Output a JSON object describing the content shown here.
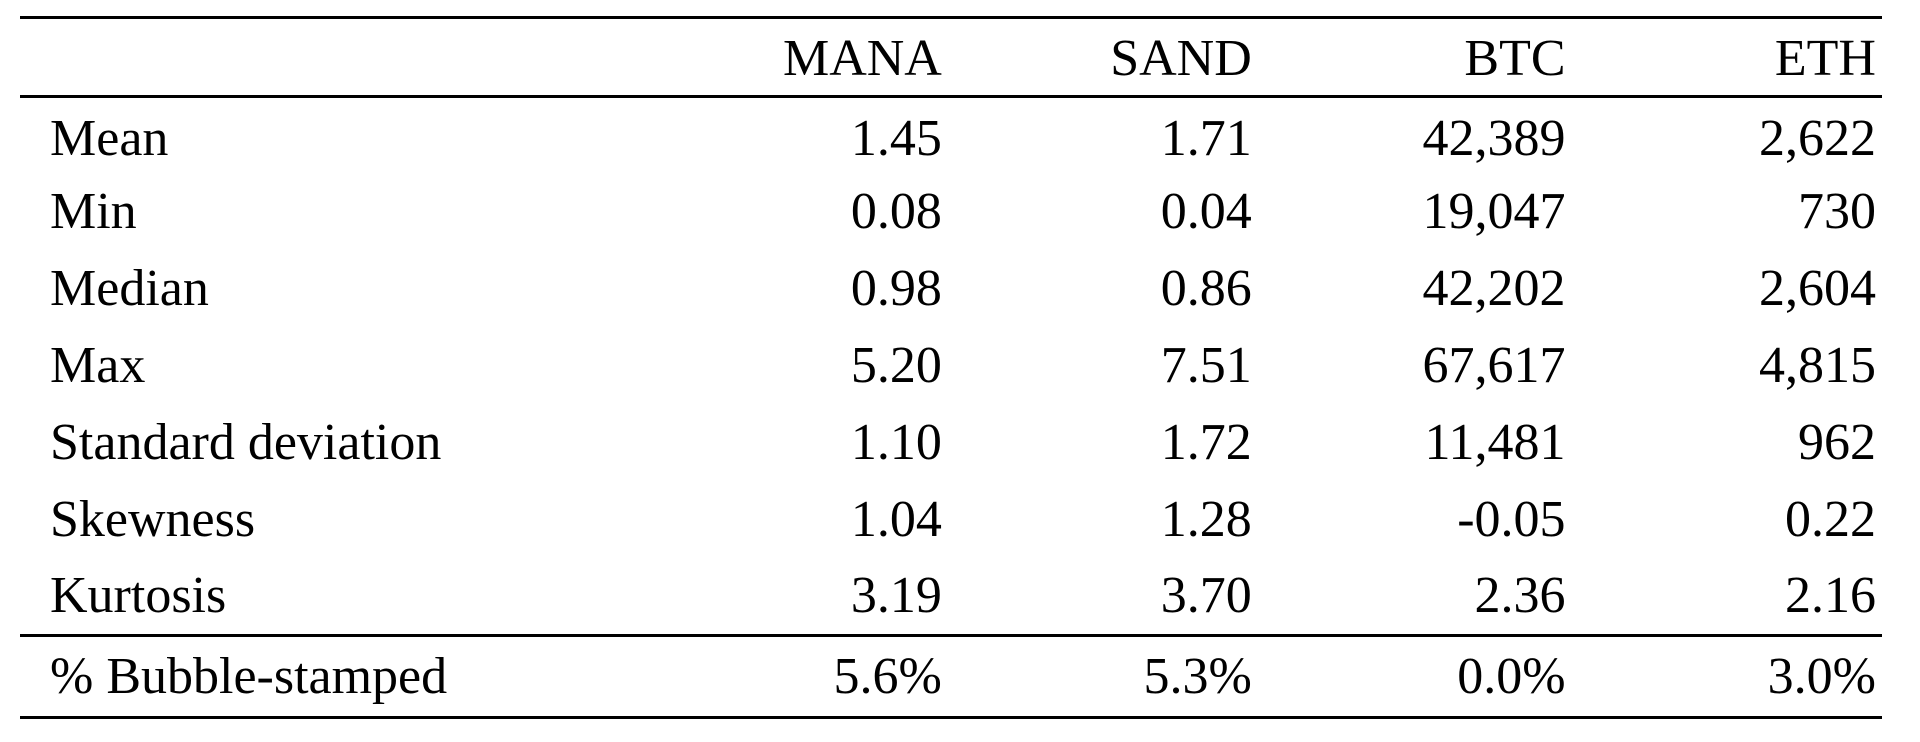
{
  "table": {
    "columns": [
      "",
      "MANA",
      "SAND",
      "BTC",
      "ETH"
    ],
    "rows": [
      {
        "label": "Mean",
        "values": [
          "1.45",
          "1.71",
          "42,389",
          "2,622"
        ]
      },
      {
        "label": "Min",
        "values": [
          "0.08",
          "0.04",
          "19,047",
          "730"
        ]
      },
      {
        "label": "Median",
        "values": [
          "0.98",
          "0.86",
          "42,202",
          "2,604"
        ]
      },
      {
        "label": "Max",
        "values": [
          "5.20",
          "7.51",
          "67,617",
          "4,815"
        ]
      },
      {
        "label": "Standard deviation",
        "values": [
          "1.10",
          "1.72",
          "11,481",
          "962"
        ]
      },
      {
        "label": "Skewness",
        "values": [
          "1.04",
          "1.28",
          "-0.05",
          "0.22"
        ]
      },
      {
        "label": "Kurtosis",
        "values": [
          "3.19",
          "3.70",
          "2.36",
          "2.16"
        ]
      }
    ],
    "footer": {
      "label": "% Bubble-stamped",
      "values": [
        "5.6%",
        "5.3%",
        "0.0%",
        "3.0%"
      ]
    }
  }
}
